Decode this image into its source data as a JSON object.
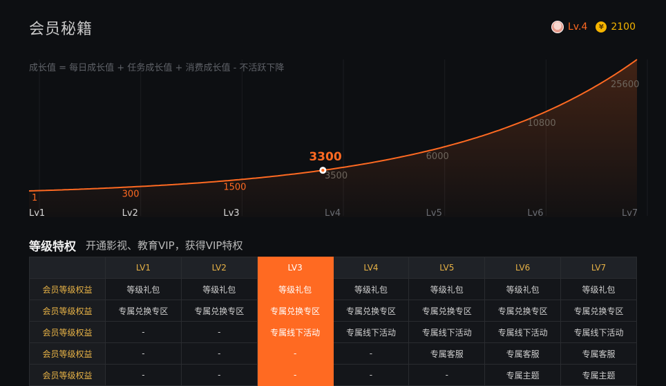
{
  "page": {
    "title": "会员秘籍"
  },
  "user_status": {
    "level": "Lv.4",
    "coins": "2100",
    "coin_symbol": "¥"
  },
  "growth": {
    "formula": "成长值 = 每日成长值 + 任务成长值 + 消费成长值 -  不活跃下降",
    "current_value": "3300"
  },
  "chart_data": {
    "type": "area",
    "categories": [
      "Lv1",
      "Lv2",
      "Lv3",
      "Lv4",
      "Lv5",
      "Lv6",
      "Lv7"
    ],
    "values": [
      1,
      300,
      1500,
      3500,
      6000,
      10800,
      25600
    ],
    "current": {
      "value": 3300
    },
    "colors": {
      "line": "#ff6a22",
      "achieved_label": "#ff6a22",
      "pending_label": "#6d655c",
      "axis_label": "#d8d8d8"
    }
  },
  "privileges": {
    "title": "等级特权",
    "subtitle": "开通影视、教育VIP，获得VIP特权",
    "columns": [
      "",
      "LV1",
      "LV2",
      "LV3",
      "LV4",
      "LV5",
      "LV6",
      "LV7"
    ],
    "active_column": 3,
    "rows": [
      {
        "label": "会员等级权益",
        "cells": [
          "等级礼包",
          "等级礼包",
          "等级礼包",
          "等级礼包",
          "等级礼包",
          "等级礼包",
          "等级礼包"
        ]
      },
      {
        "label": "会员等级权益",
        "cells": [
          "专属兑换专区",
          "专属兑换专区",
          "专属兑换专区",
          "专属兑换专区",
          "专属兑换专区",
          "专属兑换专区",
          "专属兑换专区"
        ]
      },
      {
        "label": "会员等级权益",
        "cells": [
          "-",
          "-",
          "专属线下活动",
          "专属线下活动",
          "专属线下活动",
          "专属线下活动",
          "专属线下活动"
        ]
      },
      {
        "label": "会员等级权益",
        "cells": [
          "-",
          "-",
          "-",
          "-",
          "专属客服",
          "专属客服",
          "专属客服"
        ]
      },
      {
        "label": "会员等级权益",
        "cells": [
          "-",
          "-",
          "-",
          "-",
          "-",
          "专属主题",
          "专属主题"
        ]
      }
    ]
  }
}
